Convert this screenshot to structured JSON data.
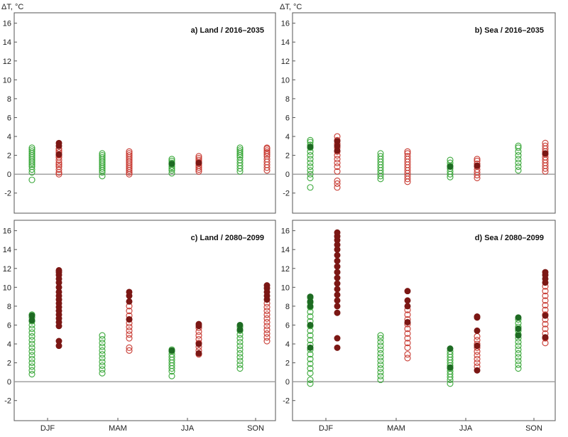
{
  "chart_data": [
    {
      "type": "scatter",
      "title": "a) Land / 2016–2035",
      "ylabel": "ΔT, °C",
      "ylim": [
        -3,
        16.5
      ],
      "yticks": [
        -2,
        0,
        2,
        4,
        6,
        8,
        10,
        12,
        14,
        16
      ],
      "categories": [],
      "colors": {
        "green_light": "#3aa83a",
        "green_dark": "#1e6b23",
        "red_light": "#c83a32",
        "red_dark": "#7b1714"
      },
      "series": [
        {
          "category": "DJF",
          "color": "green",
          "open": [
            -0.6,
            0.2,
            0.5,
            0.8,
            1.0,
            1.2,
            1.4,
            1.6,
            1.8,
            2.0,
            2.2,
            2.4,
            2.6,
            2.8
          ],
          "filled": []
        },
        {
          "category": "DJF",
          "color": "red",
          "open": [
            0.0,
            0.2,
            0.5,
            0.8,
            1.0,
            1.2,
            1.5,
            1.8,
            2.0,
            2.3,
            2.5,
            2.7
          ],
          "filled": [
            3.3,
            3.0,
            2.1
          ]
        },
        {
          "category": "MAM",
          "color": "green",
          "open": [
            -0.2,
            0.2,
            0.4,
            0.6,
            0.8,
            1.0,
            1.2,
            1.4,
            1.6,
            1.8,
            2.0,
            2.2
          ],
          "filled": []
        },
        {
          "category": "MAM",
          "color": "red",
          "open": [
            0.0,
            0.2,
            0.4,
            0.6,
            0.8,
            1.0,
            1.2,
            1.4,
            1.6,
            1.8,
            2.0,
            2.2,
            2.4
          ],
          "filled": []
        },
        {
          "category": "JJA",
          "color": "green",
          "open": [
            0.1,
            0.4,
            0.6,
            0.8,
            1.0,
            1.2,
            1.4,
            1.6
          ],
          "filled": [
            1.1
          ]
        },
        {
          "category": "JJA",
          "color": "red",
          "open": [
            0.3,
            0.5,
            0.7,
            0.9,
            1.1,
            1.3,
            1.5,
            1.7,
            1.9
          ],
          "filled": [
            1.2
          ]
        },
        {
          "category": "SON",
          "color": "green",
          "open": [
            0.3,
            0.6,
            0.9,
            1.2,
            1.5,
            1.8,
            2.0,
            2.2,
            2.4,
            2.6,
            2.8
          ],
          "filled": []
        },
        {
          "category": "SON",
          "color": "red",
          "open": [
            0.4,
            0.7,
            1.0,
            1.3,
            1.6,
            1.9,
            2.1,
            2.3,
            2.5,
            2.7,
            2.8
          ],
          "filled": []
        }
      ]
    },
    {
      "type": "scatter",
      "title": "b) Sea / 2016–2035",
      "ylabel": "ΔT, °C",
      "ylim": [
        -3,
        16.5
      ],
      "yticks": [
        -2,
        0,
        2,
        4,
        6,
        8,
        10,
        12,
        14,
        16
      ],
      "categories": [],
      "series": [
        {
          "category": "DJF",
          "color": "green",
          "open": [
            -1.4,
            -0.4,
            0.0,
            0.4,
            0.8,
            1.2,
            1.6,
            2.0,
            2.4,
            2.8,
            3.1,
            3.4,
            3.6
          ],
          "filled": [
            2.9
          ]
        },
        {
          "category": "DJF",
          "color": "red",
          "open": [
            -1.4,
            -1.0,
            -0.7,
            0.3,
            0.8,
            1.2,
            1.6,
            2.0,
            2.4,
            2.8,
            3.2,
            3.6,
            4.0
          ],
          "filled": [
            3.5,
            3.0,
            2.5
          ]
        },
        {
          "category": "MAM",
          "color": "green",
          "open": [
            -0.5,
            -0.2,
            0.1,
            0.4,
            0.7,
            1.0,
            1.3,
            1.6,
            1.9,
            2.2
          ],
          "filled": []
        },
        {
          "category": "MAM",
          "color": "red",
          "open": [
            -0.8,
            -0.5,
            -0.2,
            0.1,
            0.4,
            0.7,
            1.0,
            1.3,
            1.6,
            1.9,
            2.2,
            2.4
          ],
          "filled": []
        },
        {
          "category": "JJA",
          "color": "green",
          "open": [
            -0.3,
            0.0,
            0.3,
            0.6,
            0.9,
            1.2,
            1.5
          ],
          "filled": [
            0.8
          ]
        },
        {
          "category": "JJA",
          "color": "red",
          "open": [
            -0.4,
            -0.1,
            0.2,
            0.5,
            0.8,
            1.1,
            1.4,
            1.6
          ],
          "filled": [
            0.9
          ]
        },
        {
          "category": "SON",
          "color": "green",
          "open": [
            0.4,
            0.8,
            1.2,
            1.6,
            2.0,
            2.4,
            2.8,
            3.0
          ],
          "filled": []
        },
        {
          "category": "SON",
          "color": "red",
          "open": [
            0.3,
            0.6,
            0.9,
            1.2,
            1.5,
            1.8,
            2.1,
            2.4,
            2.7,
            3.0,
            3.3
          ],
          "filled": [
            2.2
          ]
        }
      ]
    },
    {
      "type": "scatter",
      "title": "c) Land / 2080–2099",
      "ylabel": "",
      "ylim": [
        -3,
        16.5
      ],
      "yticks": [
        -2,
        0,
        2,
        4,
        6,
        8,
        10,
        12,
        14,
        16
      ],
      "categories": [
        "DJF",
        "MAM",
        "JJA",
        "SON"
      ],
      "series": [
        {
          "category": "DJF",
          "color": "green",
          "open": [
            0.8,
            1.2,
            1.6,
            2.0,
            2.4,
            2.8,
            3.2,
            3.6,
            4.0,
            4.4,
            4.8,
            5.2,
            5.6,
            6.0,
            6.4,
            6.8,
            7.1
          ],
          "filled": [
            7.0,
            6.5
          ]
        },
        {
          "category": "DJF",
          "color": "red",
          "open": [],
          "filled": [
            3.8,
            4.3,
            5.9,
            6.3,
            6.7,
            7.1,
            7.5,
            7.9,
            8.3,
            8.7,
            9.1,
            9.5,
            10.0,
            10.5,
            10.9,
            11.3,
            11.6,
            11.8
          ]
        },
        {
          "category": "MAM",
          "color": "green",
          "open": [
            0.9,
            1.3,
            1.7,
            2.1,
            2.5,
            2.9,
            3.3,
            3.7,
            4.1,
            4.5,
            4.9
          ],
          "filled": []
        },
        {
          "category": "MAM",
          "color": "red",
          "open": [
            3.3,
            3.6,
            4.6,
            5.0,
            5.4,
            5.8,
            6.2,
            6.6,
            7.0,
            7.5,
            8.0
          ],
          "filled": [
            8.5,
            9.1,
            9.5,
            6.6
          ]
        },
        {
          "category": "JJA",
          "color": "green",
          "open": [
            0.6,
            1.1,
            1.4,
            1.7,
            2.0,
            2.3,
            2.6,
            2.9,
            3.2,
            3.4
          ],
          "filled": [
            3.3
          ]
        },
        {
          "category": "JJA",
          "color": "red",
          "open": [
            2.9,
            3.3,
            3.7,
            4.1,
            4.5,
            4.9,
            5.3,
            5.7
          ],
          "filled": [
            6.1,
            5.9,
            3.0,
            4.0
          ]
        },
        {
          "category": "SON",
          "color": "green",
          "open": [
            1.4,
            1.8,
            2.2,
            2.6,
            3.0,
            3.4,
            3.8,
            4.2,
            4.6,
            5.0,
            5.4,
            5.8
          ],
          "filled": [
            6.0,
            5.5
          ]
        },
        {
          "category": "SON",
          "color": "red",
          "open": [
            4.3,
            4.7,
            5.1,
            5.5,
            5.9,
            6.3,
            6.7,
            7.1,
            7.5,
            7.9,
            8.3
          ],
          "filled": [
            8.7,
            9.1,
            9.5,
            9.9,
            10.2
          ]
        }
      ]
    },
    {
      "type": "scatter",
      "title": "d) Sea / 2080–2099",
      "ylabel": "",
      "ylim": [
        -3,
        16.5
      ],
      "yticks": [
        -2,
        0,
        2,
        4,
        6,
        8,
        10,
        12,
        14,
        16
      ],
      "categories": [
        "DJF",
        "MAM",
        "JJA",
        "SON"
      ],
      "series": [
        {
          "category": "DJF",
          "color": "green",
          "open": [
            -0.2,
            0.2,
            0.9,
            1.4,
            1.9,
            2.4,
            2.9,
            3.4,
            3.9,
            4.4,
            4.9,
            5.4,
            5.9,
            6.4,
            6.9,
            7.4,
            7.9,
            8.4,
            8.9
          ],
          "filled": [
            9.0,
            8.5,
            8.0,
            6.0,
            3.6
          ]
        },
        {
          "category": "DJF",
          "color": "red",
          "open": [],
          "filled": [
            3.6,
            4.6,
            7.3,
            8.0,
            8.6,
            9.2,
            9.8,
            10.4,
            11.0,
            11.6,
            12.2,
            12.8,
            13.4,
            14.0,
            14.5,
            15.0,
            15.4,
            15.8
          ]
        },
        {
          "category": "MAM",
          "color": "green",
          "open": [
            0.2,
            0.6,
            1.0,
            1.4,
            1.8,
            2.2,
            2.6,
            3.0,
            3.4,
            3.8,
            4.2,
            4.6,
            4.9
          ],
          "filled": []
        },
        {
          "category": "MAM",
          "color": "red",
          "open": [
            2.5,
            2.9,
            3.6,
            4.1,
            4.6,
            5.1,
            5.6,
            6.1,
            6.6,
            7.1,
            7.6
          ],
          "filled": [
            8.0,
            8.6,
            9.6,
            6.3
          ]
        },
        {
          "category": "JJA",
          "color": "green",
          "open": [
            -0.2,
            0.2,
            0.5,
            0.8,
            1.1,
            1.4,
            1.7,
            2.0,
            2.3,
            2.6,
            2.9,
            3.2
          ],
          "filled": [
            3.5,
            1.5
          ]
        },
        {
          "category": "JJA",
          "color": "red",
          "open": [
            1.6,
            2.0,
            2.4,
            2.8,
            3.2,
            3.6,
            4.0,
            4.4,
            4.8
          ],
          "filled": [
            1.2,
            5.4,
            6.8,
            6.9,
            3.8
          ]
        },
        {
          "category": "SON",
          "color": "green",
          "open": [
            1.4,
            1.8,
            2.2,
            2.6,
            3.0,
            3.4,
            3.8,
            4.2,
            4.6,
            5.0,
            5.4,
            5.8,
            6.2,
            6.6
          ],
          "filled": [
            6.8,
            5.6,
            4.9
          ]
        },
        {
          "category": "SON",
          "color": "red",
          "open": [
            4.1,
            4.6,
            5.1,
            5.6,
            6.1,
            6.6,
            7.1,
            7.6,
            8.1,
            8.6,
            9.1,
            9.6,
            10.1
          ],
          "filled": [
            4.7,
            10.5,
            10.9,
            11.3,
            11.6,
            7.0
          ]
        }
      ]
    }
  ]
}
